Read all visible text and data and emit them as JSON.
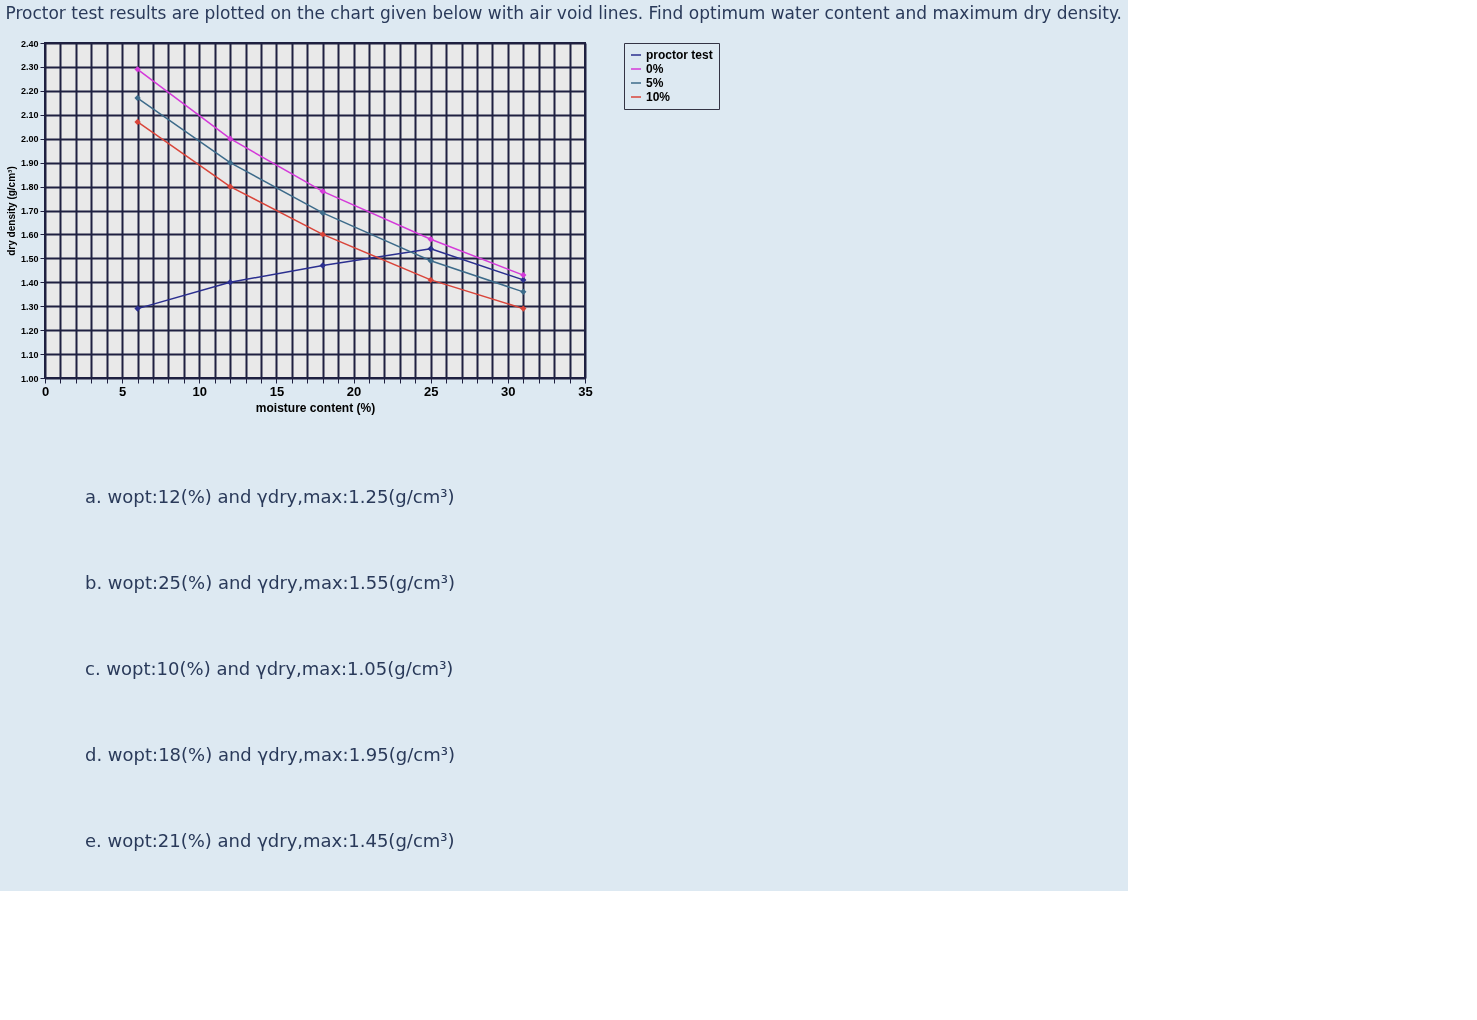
{
  "chart_data": {
    "type": "line",
    "title": "Proctor test results are plotted on the chart given below with air void lines. Find optimum water content and maximum dry density.",
    "xlabel": "moisture content (%)",
    "ylabel": "dry density (g/cm³)",
    "x": [
      6,
      12,
      18,
      25,
      31
    ],
    "series": [
      {
        "name": "proctor test",
        "color": "#2b2f8f",
        "values": [
          1.29,
          1.4,
          1.47,
          1.54,
          1.41
        ]
      },
      {
        "name": "0%",
        "color": "#d43ad9",
        "values": [
          2.29,
          2.0,
          1.78,
          1.58,
          1.43
        ]
      },
      {
        "name": "5%",
        "color": "#3d6b8a",
        "values": [
          2.17,
          1.9,
          1.69,
          1.49,
          1.36
        ]
      },
      {
        "name": "10%",
        "color": "#d9453a",
        "values": [
          2.07,
          1.8,
          1.6,
          1.41,
          1.29
        ]
      }
    ],
    "xlim": [
      0,
      35
    ],
    "ylim": [
      1.0,
      2.4
    ],
    "xticks": [
      0,
      {
        "value": 1,
        "label": null
      },
      {
        "value": 2,
        "label": null
      },
      {
        "value": 3,
        "label": null
      },
      {
        "value": 4,
        "label": null
      },
      5,
      {
        "value": 6,
        "label": null
      },
      {
        "value": 7,
        "label": null
      },
      {
        "value": 8,
        "label": null
      },
      {
        "value": 9,
        "label": null
      },
      10,
      {
        "value": 11,
        "label": null
      },
      {
        "value": 12,
        "label": null
      },
      {
        "value": 13,
        "label": null
      },
      {
        "value": 14,
        "label": null
      },
      15,
      {
        "value": 16,
        "label": null
      },
      {
        "value": 17,
        "label": null
      },
      {
        "value": 18,
        "label": null
      },
      {
        "value": 19,
        "label": null
      },
      20,
      {
        "value": 21,
        "label": null
      },
      {
        "value": 22,
        "label": null
      },
      {
        "value": 23,
        "label": null
      },
      {
        "value": 24,
        "label": null
      },
      25,
      {
        "value": 26,
        "label": null
      },
      {
        "value": 27,
        "label": null
      },
      {
        "value": 28,
        "label": null
      },
      {
        "value": 29,
        "label": null
      },
      30,
      {
        "value": 31,
        "label": null
      },
      {
        "value": 32,
        "label": null
      },
      {
        "value": 33,
        "label": null
      },
      {
        "value": 34,
        "label": null
      },
      35
    ],
    "yticks": [
      {
        "value": 1.0,
        "label": "1.00"
      },
      {
        "value": 1.1,
        "label": "1.10"
      },
      {
        "value": 1.2,
        "label": "1.20"
      },
      {
        "value": 1.3,
        "label": "1.30"
      },
      {
        "value": 1.4,
        "label": "1.40"
      },
      {
        "value": 1.5,
        "label": "1.50"
      },
      {
        "value": 1.6,
        "label": "1.60"
      },
      {
        "value": 1.7,
        "label": "1.70"
      },
      {
        "value": 1.8,
        "label": "1.80"
      },
      {
        "value": 1.9,
        "label": "1.90"
      },
      {
        "value": 2.0,
        "label": "2.00"
      },
      {
        "value": 2.1,
        "label": "2.10"
      },
      {
        "value": 2.2,
        "label": "2.20"
      },
      {
        "value": 2.3,
        "label": "2.30"
      },
      {
        "value": 2.4,
        "label": "2.40"
      }
    ],
    "grid": true,
    "legend": "right",
    "marker": "diamond",
    "line_style": "solid",
    "annotations": [
      "a. wopt:12(%) and γdry,max:1.25(g/cm³)",
      "b. wopt:25(%) and γdry,max:1.55(g/cm³)",
      "c. wopt:10(%) and γdry,max:1.05(g/cm³)",
      "d. wopt:18(%) and γdry,max:1.95(g/cm³)",
      "e. wopt:21(%) and γdry,max:1.45(g/cm³)"
    ]
  }
}
